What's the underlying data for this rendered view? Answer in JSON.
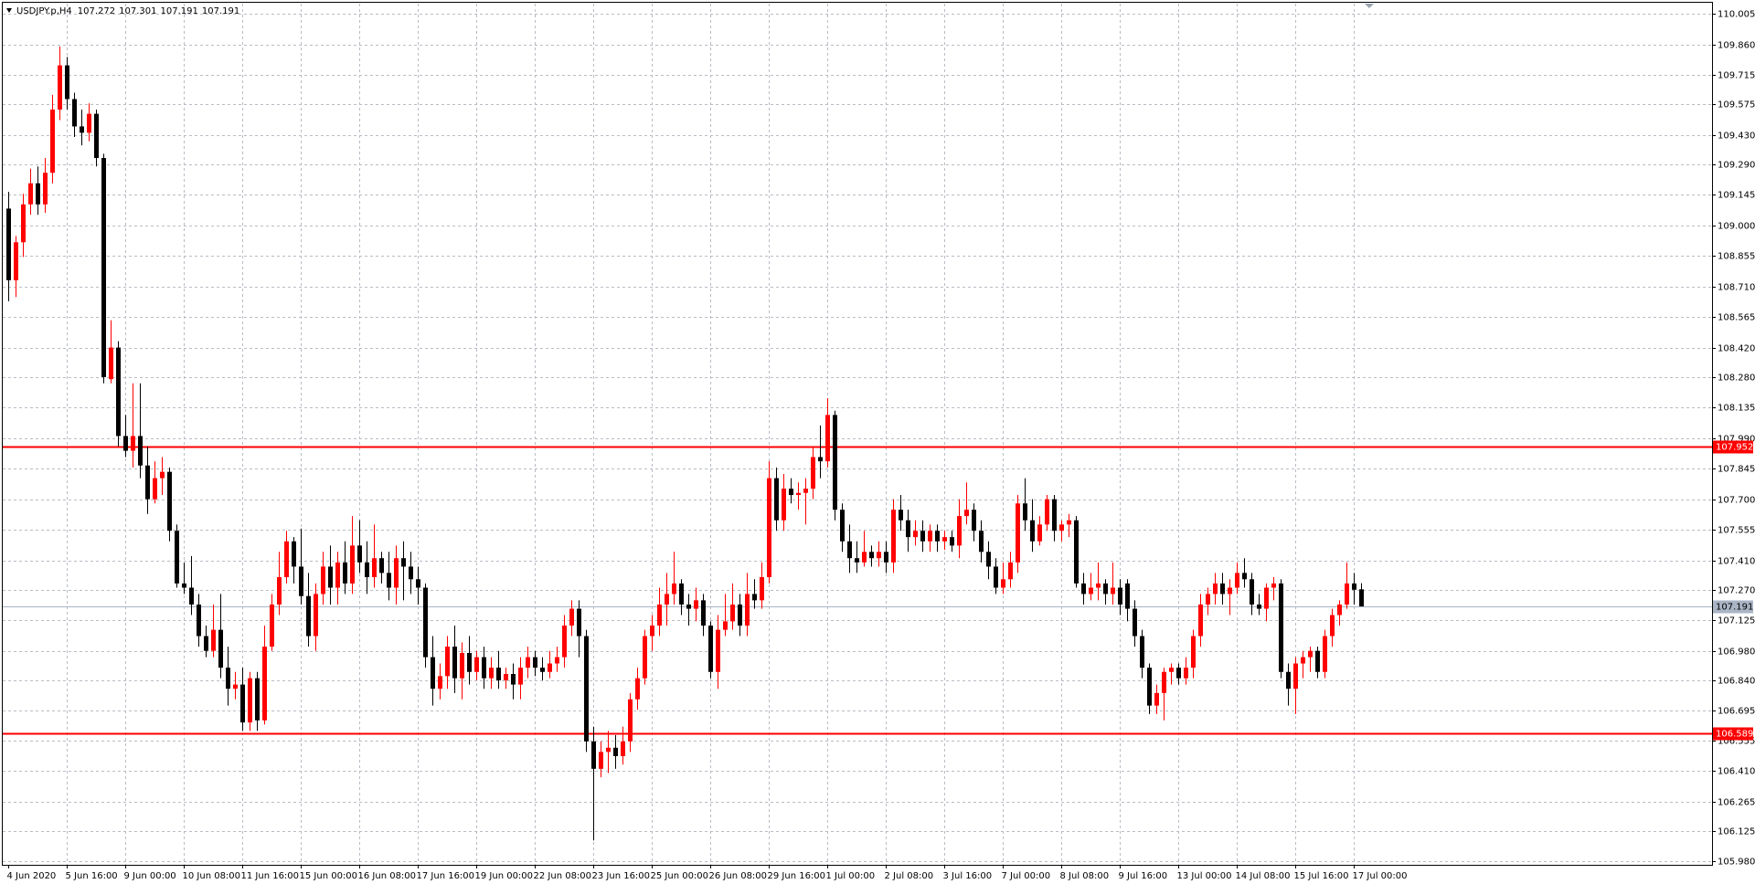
{
  "chart_data": {
    "type": "candlestick",
    "symbol": "USDJPY.p,H4",
    "up_color": "#ff0000",
    "down_color": "#000000",
    "grid": true,
    "ylim": [
      105.964,
      110.053
    ],
    "yticks": [
      110.005,
      {
        "value": 109.86,
        "label": "109.860"
      },
      109.715,
      109.575,
      {
        "value": 109.43,
        "label": "109.430"
      },
      {
        "value": 109.29,
        "label": "109.290"
      },
      109.145,
      {
        "value": 109,
        "label": "109.000"
      },
      108.855,
      {
        "value": 108.71,
        "label": "108.710"
      },
      108.565,
      {
        "value": 108.42,
        "label": "108.420"
      },
      {
        "value": 108.28,
        "label": "108.280"
      },
      108.135,
      {
        "value": 107.99,
        "label": "107.990"
      },
      107.845,
      {
        "value": 107.7,
        "label": "107.700"
      },
      107.555,
      {
        "value": 107.41,
        "label": "107.410"
      },
      {
        "value": 107.27,
        "label": "107.270"
      },
      107.125,
      {
        "value": 106.98,
        "label": "106.980"
      },
      {
        "value": 106.84,
        "label": "106.840"
      },
      106.695,
      106.555,
      {
        "value": 106.41,
        "label": "106.410"
      },
      106.265,
      106.125,
      {
        "value": 105.98,
        "label": "105.980"
      }
    ],
    "hlines": [
      {
        "value": 107.952,
        "color": "#ff0000"
      },
      {
        "value": 107.191,
        "color": "#a9b4c4"
      },
      {
        "value": 106.589,
        "color": "#ff0000"
      }
    ],
    "categories": [
      "4 Jun 2020",
      null,
      null,
      null,
      null,
      null,
      null,
      null,
      "5 Jun 16:00",
      null,
      null,
      null,
      null,
      null,
      null,
      null,
      "9 Jun 00:00",
      null,
      null,
      null,
      null,
      null,
      null,
      null,
      "10 Jun 08:00",
      null,
      null,
      null,
      null,
      null,
      null,
      null,
      "11 Jun 16:00",
      null,
      null,
      null,
      null,
      null,
      null,
      null,
      "15 Jun 00:00",
      null,
      null,
      null,
      null,
      null,
      null,
      null,
      "16 Jun 08:00",
      null,
      null,
      null,
      null,
      null,
      null,
      null,
      "17 Jun 16:00",
      null,
      null,
      null,
      null,
      null,
      null,
      null,
      "19 Jun 00:00",
      null,
      null,
      null,
      null,
      null,
      null,
      null,
      "22 Jun 08:00",
      null,
      null,
      null,
      null,
      null,
      null,
      null,
      "23 Jun 16:00",
      null,
      null,
      null,
      null,
      null,
      null,
      null,
      "25 Jun 00:00",
      null,
      null,
      null,
      null,
      null,
      null,
      null,
      "26 Jun 08:00",
      null,
      null,
      null,
      null,
      null,
      null,
      null,
      "29 Jun 16:00",
      null,
      null,
      null,
      null,
      null,
      null,
      null,
      "1 Jul 00:00",
      null,
      null,
      null,
      null,
      null,
      null,
      null,
      "2 Jul 08:00",
      null,
      null,
      null,
      null,
      null,
      null,
      null,
      "3 Jul 16:00",
      null,
      null,
      null,
      null,
      null,
      null,
      null,
      "7 Jul 00:00",
      null,
      null,
      null,
      null,
      null,
      null,
      null,
      "8 Jul 08:00",
      null,
      null,
      null,
      null,
      null,
      null,
      null,
      "9 Jul 16:00",
      null,
      null,
      null,
      null,
      null,
      null,
      null,
      "13 Jul 00:00",
      null,
      null,
      null,
      null,
      null,
      null,
      null,
      "14 Jul 08:00",
      null,
      null,
      null,
      null,
      null,
      null,
      null,
      "15 Jul 16:00",
      null,
      null,
      null,
      null,
      null,
      null,
      null,
      "17 Jul 00:00",
      null
    ],
    "open": [
      109.08,
      108.74,
      108.92,
      109.1,
      109.2,
      109.1,
      109.25,
      109.55,
      109.76,
      109.6,
      109.47,
      109.44,
      109.53,
      109.32,
      108.27,
      108.42,
      108.0,
      107.93,
      108.0,
      107.86,
      107.7,
      107.8,
      107.83,
      107.55,
      107.3,
      107.28,
      107.2,
      107.05,
      106.98,
      107.08,
      106.9,
      106.8,
      106.82,
      106.64,
      106.85,
      106.65,
      107.0,
      107.2,
      107.33,
      107.5,
      107.38,
      107.24,
      107.05,
      107.25,
      107.38,
      107.28,
      107.4,
      107.3,
      107.48,
      107.4,
      107.33,
      107.42,
      107.35,
      107.28,
      107.42,
      107.38,
      107.32,
      107.28,
      106.95,
      106.8,
      106.86,
      107.0,
      106.85,
      106.97,
      106.88,
      106.95,
      106.85,
      106.9,
      106.84,
      106.87,
      106.82,
      106.9,
      106.95,
      106.9,
      106.88,
      106.92,
      106.95,
      107.1,
      107.18,
      107.05,
      106.55,
      106.42,
      106.5,
      106.52,
      106.48,
      106.55,
      106.75,
      106.85,
      107.05,
      107.1,
      107.2,
      107.25,
      107.3,
      107.2,
      107.18,
      107.22,
      107.1,
      106.88,
      107.08,
      107.12,
      107.2,
      107.1,
      107.25,
      107.22,
      107.33,
      107.8,
      107.6,
      107.75,
      107.72,
      107.73,
      107.75,
      107.9,
      107.88,
      108.1,
      107.65,
      107.5,
      107.42,
      107.4,
      107.45,
      107.42,
      107.45,
      107.4,
      107.65,
      107.6,
      107.52,
      107.55,
      107.5,
      107.55,
      107.5,
      107.52,
      107.48,
      107.62,
      107.65,
      107.55,
      107.45,
      107.38,
      107.28,
      107.32,
      107.4,
      107.68,
      107.6,
      107.5,
      107.58,
      107.7,
      107.55,
      107.58,
      107.6,
      107.3,
      107.25,
      107.28,
      107.3,
      107.25,
      107.28,
      107.3,
      107.18,
      107.05,
      106.9,
      106.72,
      106.78,
      106.88,
      106.9,
      106.85,
      106.9,
      107.05,
      107.2,
      107.25,
      107.3,
      107.25,
      107.28,
      107.35,
      107.32,
      107.2,
      107.18,
      107.28,
      107.3,
      106.88,
      106.8,
      106.92,
      106.95,
      106.98,
      106.88,
      107.05,
      107.15,
      107.2,
      107.3,
      107.272
    ],
    "high": [
      109.16,
      108.95,
      109.15,
      109.27,
      109.28,
      109.32,
      109.62,
      109.85,
      109.8,
      109.63,
      109.55,
      109.58,
      109.55,
      109.34,
      108.55,
      108.45,
      108.1,
      108.25,
      108.25,
      107.95,
      107.88,
      107.9,
      107.85,
      107.58,
      107.4,
      107.43,
      107.25,
      107.1,
      107.2,
      107.25,
      107.0,
      106.88,
      106.9,
      106.88,
      106.88,
      107.1,
      107.25,
      107.45,
      107.55,
      107.52,
      107.56,
      107.35,
      107.3,
      107.45,
      107.48,
      107.45,
      107.5,
      107.62,
      107.6,
      107.5,
      107.58,
      107.45,
      107.45,
      107.48,
      107.5,
      107.45,
      107.38,
      107.3,
      107.05,
      106.92,
      107.05,
      107.1,
      107.02,
      107.05,
      106.98,
      107.0,
      106.95,
      106.98,
      106.9,
      106.92,
      106.95,
      107.0,
      106.98,
      106.95,
      106.98,
      107.0,
      107.15,
      107.22,
      107.22,
      107.08,
      106.62,
      106.55,
      106.6,
      106.58,
      106.62,
      106.78,
      106.9,
      107.08,
      107.15,
      107.28,
      107.35,
      107.45,
      107.32,
      107.25,
      107.28,
      107.25,
      107.12,
      107.15,
      107.25,
      107.3,
      107.25,
      107.35,
      107.32,
      107.4,
      107.88,
      107.85,
      107.82,
      107.8,
      107.78,
      107.8,
      107.95,
      108.05,
      108.18,
      108.12,
      107.68,
      107.58,
      107.5,
      107.55,
      107.48,
      107.5,
      107.5,
      107.7,
      107.72,
      107.65,
      107.6,
      107.6,
      107.58,
      107.58,
      107.55,
      107.55,
      107.7,
      107.78,
      107.68,
      107.6,
      107.5,
      107.42,
      107.4,
      107.45,
      107.72,
      107.8,
      107.7,
      107.62,
      107.72,
      107.72,
      107.6,
      107.63,
      107.62,
      107.35,
      107.35,
      107.4,
      107.32,
      107.4,
      107.32,
      107.32,
      107.22,
      107.08,
      106.92,
      106.82,
      106.9,
      106.92,
      106.92,
      106.95,
      107.08,
      107.25,
      107.28,
      107.35,
      107.35,
      107.32,
      107.4,
      107.42,
      107.35,
      107.25,
      107.3,
      107.33,
      107.32,
      106.92,
      106.95,
      106.98,
      107.0,
      107.0,
      107.08,
      107.18,
      107.22,
      107.4,
      107.35,
      107.301
    ],
    "low": [
      108.64,
      108.66,
      108.85,
      109.05,
      109.05,
      109.06,
      109.2,
      109.5,
      109.55,
      109.42,
      109.38,
      109.4,
      109.28,
      108.25,
      108.25,
      107.95,
      107.9,
      107.85,
      107.8,
      107.63,
      107.68,
      107.72,
      107.5,
      107.28,
      107.25,
      107.15,
      107.0,
      106.95,
      106.95,
      106.85,
      106.72,
      106.75,
      106.6,
      106.6,
      106.6,
      106.63,
      106.98,
      107.15,
      107.3,
      107.3,
      107.2,
      107.0,
      106.98,
      107.2,
      107.2,
      107.2,
      107.25,
      107.25,
      107.35,
      107.25,
      107.28,
      107.3,
      107.22,
      107.2,
      107.22,
      107.25,
      107.2,
      106.9,
      106.72,
      106.75,
      106.8,
      106.78,
      106.75,
      106.82,
      106.84,
      106.8,
      106.8,
      106.8,
      106.8,
      106.75,
      106.75,
      106.85,
      106.86,
      106.84,
      106.85,
      106.88,
      106.9,
      107.05,
      106.95,
      106.5,
      106.08,
      106.38,
      106.4,
      106.42,
      106.44,
      106.5,
      106.7,
      106.82,
      106.98,
      107.05,
      107.1,
      107.2,
      107.15,
      107.1,
      107.12,
      107.05,
      106.85,
      106.8,
      107.05,
      107.08,
      107.05,
      107.05,
      107.18,
      107.18,
      107.3,
      107.55,
      107.55,
      107.68,
      107.65,
      107.58,
      107.7,
      107.8,
      107.85,
      107.6,
      107.45,
      107.35,
      107.35,
      107.38,
      107.38,
      107.38,
      107.35,
      107.35,
      107.55,
      107.45,
      107.48,
      107.45,
      107.45,
      107.45,
      107.46,
      107.45,
      107.42,
      107.58,
      107.5,
      107.4,
      107.32,
      107.25,
      107.25,
      107.28,
      107.35,
      107.55,
      107.45,
      107.48,
      107.55,
      107.5,
      107.5,
      107.52,
      107.28,
      107.2,
      107.22,
      107.22,
      107.2,
      107.2,
      107.15,
      107.12,
      107.0,
      106.85,
      106.68,
      106.68,
      106.65,
      106.82,
      106.82,
      106.82,
      106.85,
      107.0,
      107.15,
      107.2,
      107.2,
      107.15,
      107.25,
      107.28,
      107.15,
      107.15,
      107.12,
      107.22,
      106.85,
      106.72,
      106.68,
      106.85,
      106.88,
      106.85,
      106.85,
      107.0,
      107.1,
      107.18,
      107.2,
      107.191
    ],
    "close": [
      108.74,
      108.92,
      109.1,
      109.2,
      109.1,
      109.25,
      109.55,
      109.76,
      109.6,
      109.47,
      109.44,
      109.53,
      109.32,
      108.28,
      108.42,
      108.0,
      107.93,
      108.0,
      107.86,
      107.7,
      107.8,
      107.83,
      107.55,
      107.3,
      107.28,
      107.2,
      107.05,
      106.98,
      107.08,
      106.9,
      106.8,
      106.82,
      106.64,
      106.85,
      106.65,
      107.0,
      107.2,
      107.33,
      107.5,
      107.38,
      107.24,
      107.05,
      107.25,
      107.38,
      107.28,
      107.4,
      107.3,
      107.48,
      107.4,
      107.33,
      107.42,
      107.35,
      107.28,
      107.42,
      107.38,
      107.32,
      107.28,
      106.95,
      106.8,
      106.86,
      107.0,
      106.85,
      106.97,
      106.88,
      106.95,
      106.85,
      106.9,
      106.84,
      106.87,
      106.82,
      106.9,
      106.95,
      106.9,
      106.88,
      106.92,
      106.95,
      107.1,
      107.18,
      107.05,
      106.55,
      106.42,
      106.5,
      106.52,
      106.48,
      106.55,
      106.75,
      106.85,
      107.05,
      107.1,
      107.2,
      107.25,
      107.3,
      107.2,
      107.18,
      107.22,
      107.1,
      106.88,
      107.08,
      107.12,
      107.2,
      107.1,
      107.25,
      107.22,
      107.33,
      107.8,
      107.6,
      107.75,
      107.72,
      107.73,
      107.75,
      107.9,
      107.88,
      108.1,
      107.65,
      107.5,
      107.42,
      107.4,
      107.45,
      107.42,
      107.45,
      107.4,
      107.65,
      107.6,
      107.52,
      107.55,
      107.5,
      107.55,
      107.5,
      107.52,
      107.48,
      107.62,
      107.65,
      107.55,
      107.45,
      107.38,
      107.28,
      107.32,
      107.4,
      107.68,
      107.6,
      107.5,
      107.58,
      107.7,
      107.55,
      107.58,
      107.6,
      107.3,
      107.25,
      107.28,
      107.3,
      107.25,
      107.28,
      107.2,
      107.18,
      107.05,
      106.9,
      106.72,
      106.78,
      106.88,
      106.9,
      106.85,
      106.9,
      107.05,
      107.2,
      107.25,
      107.3,
      107.25,
      107.28,
      107.35,
      107.32,
      107.2,
      107.18,
      107.28,
      107.3,
      106.88,
      106.8,
      106.92,
      106.95,
      106.98,
      106.88,
      107.05,
      107.15,
      107.2,
      107.3,
      107.27,
      107.191
    ]
  }
}
